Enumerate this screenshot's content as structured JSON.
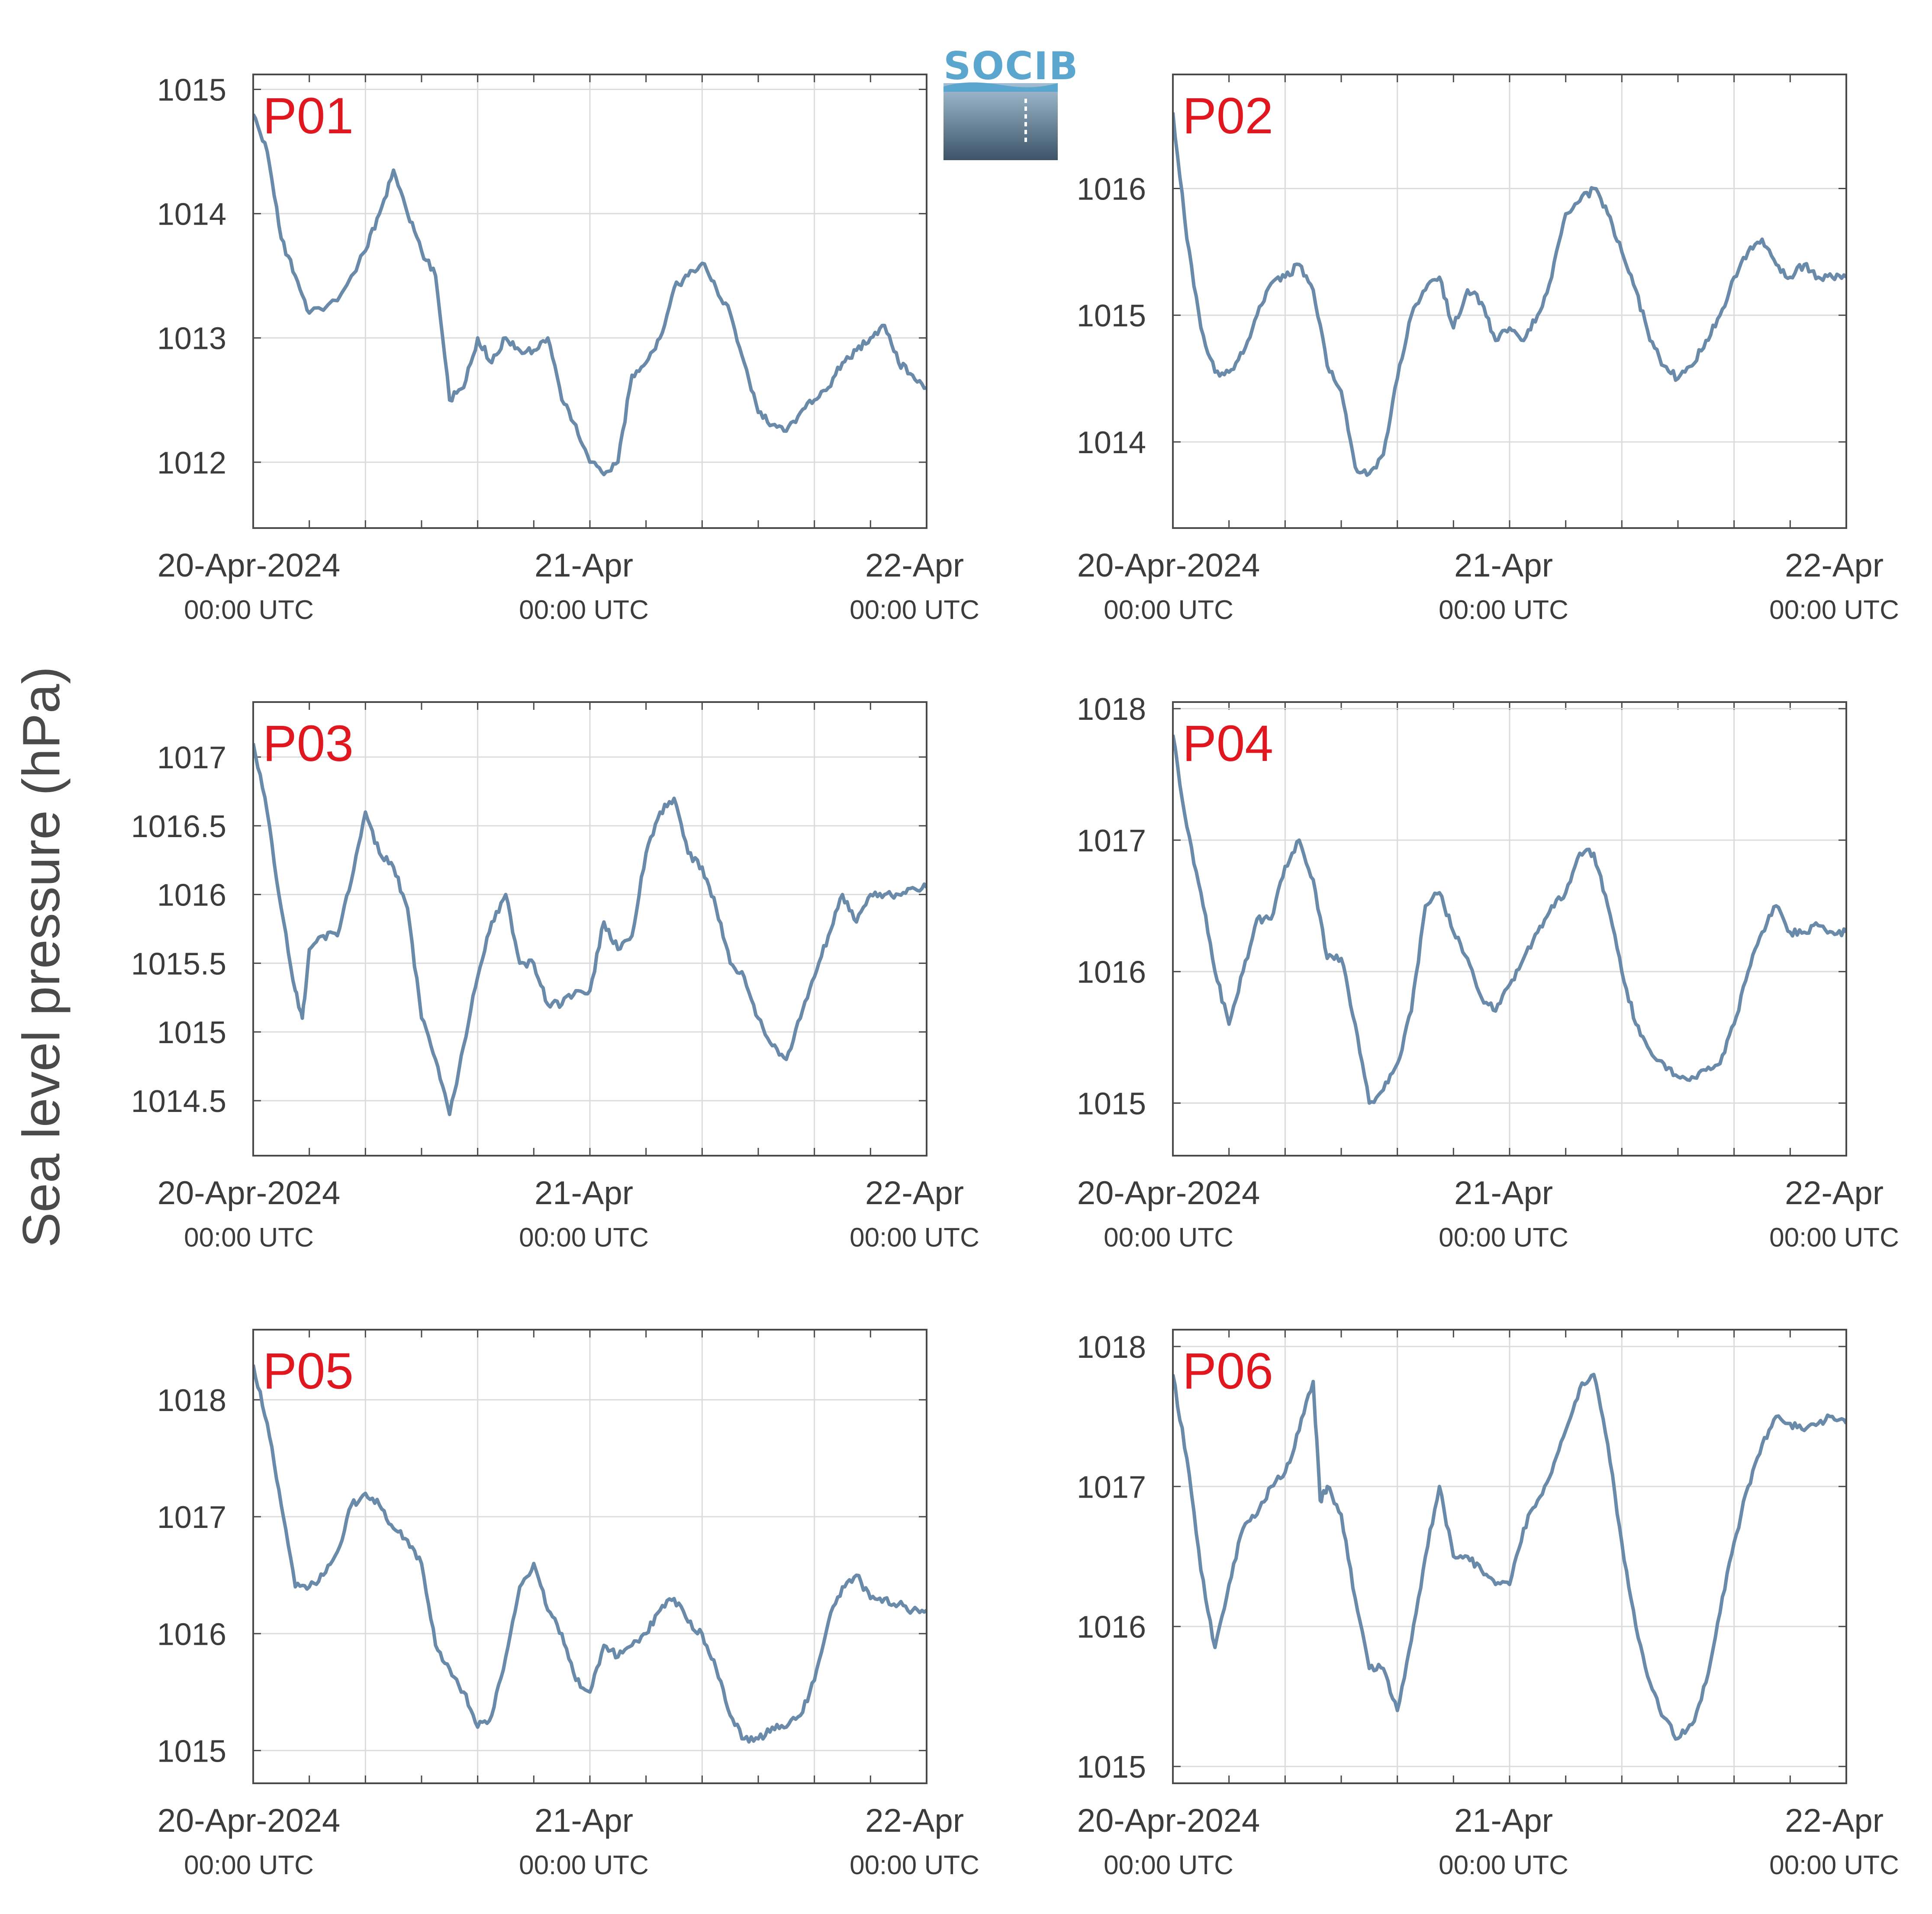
{
  "y_axis_label": "Sea level pressure (hPa)",
  "logo": {
    "text": "SOCIB"
  },
  "colors": {
    "line": "#6a8aaa",
    "station_label": "#e0171f",
    "grid": "#dcdcdc",
    "axis": "#4a4a4a",
    "text": "#3c3c3c"
  },
  "x_tick_labels": [
    {
      "date": "20-Apr-2024",
      "time": "00:00 UTC"
    },
    {
      "date": "21-Apr",
      "time": "00:00 UTC"
    },
    {
      "date": "22-Apr",
      "time": "00:00 UTC"
    }
  ],
  "chart_data": [
    {
      "type": "line",
      "title": "P01",
      "xlabel": "",
      "ylabel": "Sea level pressure (hPa)",
      "xlim": [
        "2024-04-20 00:00",
        "2024-04-22 00:00"
      ],
      "ylim": [
        1011.47,
        1015.12
      ],
      "yticks": [
        "1012",
        "1013",
        "1014",
        "1015"
      ],
      "grid": true,
      "series": [
        {
          "x_hours": [
            0,
            1,
            2,
            3,
            4,
            6,
            8,
            9,
            10,
            11,
            12,
            13,
            14,
            15,
            16,
            17,
            18,
            19,
            20,
            21,
            22,
            23,
            24,
            25,
            26,
            27,
            28,
            29,
            30,
            31,
            32,
            33,
            34,
            35,
            36,
            37,
            38,
            39,
            40,
            41,
            42,
            43,
            44,
            45,
            46,
            47,
            48
          ],
          "values": [
            1014.8,
            1014.5,
            1013.8,
            1013.5,
            1013.2,
            1013.3,
            1013.7,
            1014.0,
            1014.35,
            1014.0,
            1013.7,
            1013.5,
            1012.5,
            1012.6,
            1013.0,
            1012.8,
            1013.0,
            1012.9,
            1012.9,
            1013.0,
            1012.5,
            1012.3,
            1012.0,
            1011.9,
            1012.0,
            1012.7,
            1012.8,
            1013.0,
            1013.4,
            1013.5,
            1013.6,
            1013.4,
            1013.2,
            1012.8,
            1012.4,
            1012.3,
            1012.25,
            1012.4,
            1012.5,
            1012.6,
            1012.8,
            1012.9,
            1013.0,
            1013.1,
            1012.8,
            1012.7,
            1012.6
          ]
        }
      ]
    },
    {
      "type": "line",
      "title": "P02",
      "xlabel": "",
      "ylabel": "Sea level pressure (hPa)",
      "xlim": [
        "2024-04-20 00:00",
        "2024-04-22 00:00"
      ],
      "ylim": [
        1013.32,
        1016.9
      ],
      "yticks": [
        "1014",
        "1015",
        "1016"
      ],
      "grid": true,
      "series": [
        {
          "x_hours": [
            0,
            1,
            2,
            3,
            4,
            5,
            6,
            7,
            8,
            9,
            10,
            11,
            12,
            13,
            14,
            15,
            16,
            17,
            18,
            19,
            20,
            21,
            22,
            23,
            24,
            25,
            26,
            27,
            28,
            29,
            30,
            31,
            32,
            33,
            34,
            35,
            36,
            37,
            38,
            39,
            40,
            41,
            42,
            43,
            44,
            45,
            46,
            47,
            48
          ],
          "values": [
            1016.6,
            1015.6,
            1014.9,
            1014.55,
            1014.55,
            1014.7,
            1015.0,
            1015.25,
            1015.3,
            1015.4,
            1015.2,
            1014.6,
            1014.4,
            1013.8,
            1013.75,
            1013.9,
            1014.5,
            1015.0,
            1015.2,
            1015.3,
            1014.9,
            1015.2,
            1015.1,
            1014.8,
            1014.9,
            1014.8,
            1015.0,
            1015.3,
            1015.8,
            1015.9,
            1016.0,
            1015.8,
            1015.5,
            1015.2,
            1014.8,
            1014.6,
            1014.5,
            1014.6,
            1014.8,
            1015.0,
            1015.3,
            1015.5,
            1015.6,
            1015.4,
            1015.3,
            1015.4,
            1015.3,
            1015.3,
            1015.3
          ]
        }
      ]
    },
    {
      "type": "line",
      "title": "P03",
      "xlabel": "",
      "ylabel": "Sea level pressure (hPa)",
      "xlim": [
        "2024-04-20 00:00",
        "2024-04-22 00:00"
      ],
      "ylim": [
        1014.1,
        1017.4
      ],
      "yticks": [
        "1014.5",
        "1015",
        "1015.5",
        "1016",
        "1016.5",
        "1017"
      ],
      "grid": true,
      "series": [
        {
          "x_hours": [
            0,
            1,
            2,
            3,
            3.5,
            4,
            5,
            6,
            7,
            8,
            9,
            10,
            11,
            12,
            13,
            14,
            15,
            16,
            17,
            18,
            19,
            20,
            21,
            22,
            23,
            24,
            25,
            26,
            27,
            28,
            29,
            30,
            31,
            32,
            33,
            34,
            35,
            36,
            37,
            38,
            39,
            40,
            41,
            42,
            43,
            44,
            45,
            46,
            47,
            48
          ],
          "values": [
            1017.1,
            1016.6,
            1015.9,
            1015.3,
            1015.1,
            1015.6,
            1015.7,
            1015.7,
            1016.1,
            1016.6,
            1016.3,
            1016.2,
            1015.9,
            1015.1,
            1014.8,
            1014.4,
            1014.9,
            1015.4,
            1015.8,
            1016.0,
            1015.5,
            1015.5,
            1015.2,
            1015.2,
            1015.3,
            1015.3,
            1015.8,
            1015.6,
            1015.7,
            1016.3,
            1016.6,
            1016.7,
            1016.3,
            1016.2,
            1015.9,
            1015.5,
            1015.4,
            1015.1,
            1014.9,
            1014.8,
            1015.1,
            1015.4,
            1015.7,
            1016.0,
            1015.8,
            1016.0,
            1016.0,
            1016.0,
            1016.05,
            1016.05
          ]
        }
      ]
    },
    {
      "type": "line",
      "title": "P04",
      "xlabel": "",
      "ylabel": "Sea level pressure (hPa)",
      "xlim": [
        "2024-04-20 00:00",
        "2024-04-22 00:00"
      ],
      "ylim": [
        1014.6,
        1018.05
      ],
      "yticks": [
        "1015",
        "1016",
        "1017",
        "1018"
      ],
      "grid": true,
      "series": [
        {
          "x_hours": [
            0,
            1,
            2,
            3,
            4,
            5,
            6,
            7,
            8,
            9,
            10,
            11,
            12,
            13,
            14,
            15,
            16,
            17,
            18,
            19,
            20,
            21,
            22,
            23,
            24,
            25,
            26,
            27,
            28,
            29,
            30,
            31,
            32,
            33,
            34,
            35,
            36,
            37,
            38,
            39,
            40,
            41,
            42,
            43,
            44,
            45,
            46,
            47,
            48
          ],
          "values": [
            1017.8,
            1017.1,
            1016.6,
            1016.0,
            1015.6,
            1016.0,
            1016.4,
            1016.4,
            1016.8,
            1017.0,
            1016.7,
            1016.1,
            1016.1,
            1015.6,
            1015.0,
            1015.1,
            1015.3,
            1015.7,
            1016.5,
            1016.6,
            1016.3,
            1016.1,
            1015.8,
            1015.7,
            1015.9,
            1016.1,
            1016.3,
            1016.5,
            1016.6,
            1016.9,
            1016.9,
            1016.5,
            1016.0,
            1015.6,
            1015.4,
            1015.3,
            1015.2,
            1015.2,
            1015.25,
            1015.3,
            1015.6,
            1016.0,
            1016.3,
            1016.5,
            1016.3,
            1016.3,
            1016.35,
            1016.3,
            1016.3
          ]
        }
      ]
    },
    {
      "type": "line",
      "title": "P05",
      "xlabel": "",
      "ylabel": "Sea level pressure (hPa)",
      "xlim": [
        "2024-04-20 00:00",
        "2024-04-22 00:00"
      ],
      "ylim": [
        1014.72,
        1018.6
      ],
      "yticks": [
        "1015",
        "1016",
        "1017",
        "1018"
      ],
      "grid": true,
      "series": [
        {
          "x_hours": [
            0,
            1,
            2,
            3,
            4,
            5,
            6,
            7,
            8,
            9,
            10,
            11,
            12,
            13,
            14,
            15,
            16,
            17,
            18,
            19,
            20,
            21,
            22,
            23,
            24,
            25,
            26,
            27,
            28,
            29,
            30,
            31,
            32,
            33,
            34,
            35,
            36,
            37,
            38,
            39,
            40,
            41,
            42,
            43,
            44,
            45,
            46,
            47,
            48
          ],
          "values": [
            1018.3,
            1017.8,
            1017.1,
            1016.4,
            1016.4,
            1016.5,
            1016.7,
            1017.1,
            1017.2,
            1017.1,
            1016.9,
            1016.8,
            1016.6,
            1015.9,
            1015.7,
            1015.5,
            1015.2,
            1015.3,
            1015.8,
            1016.4,
            1016.6,
            1016.2,
            1016.0,
            1015.6,
            1015.5,
            1015.9,
            1015.8,
            1015.9,
            1016.0,
            1016.2,
            1016.3,
            1016.1,
            1016.0,
            1015.7,
            1015.3,
            1015.1,
            1015.1,
            1015.2,
            1015.2,
            1015.3,
            1015.6,
            1016.1,
            1016.4,
            1016.5,
            1016.3,
            1016.3,
            1016.25,
            1016.2,
            1016.2
          ]
        }
      ]
    },
    {
      "type": "line",
      "title": "P06",
      "xlabel": "",
      "ylabel": "Sea level pressure (hPa)",
      "xlim": [
        "2024-04-20 00:00",
        "2024-04-22 00:00"
      ],
      "ylim": [
        1014.88,
        1018.12
      ],
      "yticks": [
        "1015",
        "1016",
        "1017",
        "1018"
      ],
      "grid": true,
      "series": [
        {
          "x_hours": [
            0,
            1,
            2,
            3,
            4,
            5,
            6,
            7,
            8,
            9,
            10,
            10.5,
            11,
            12,
            13,
            14,
            15,
            16,
            17,
            18,
            19,
            20,
            21,
            22,
            23,
            24,
            25,
            26,
            27,
            28,
            29,
            30,
            31,
            32,
            33,
            34,
            35,
            36,
            37,
            38,
            39,
            40,
            41,
            42,
            43,
            44,
            45,
            46,
            47,
            48
          ],
          "values": [
            1017.8,
            1017.2,
            1016.4,
            1015.85,
            1016.3,
            1016.7,
            1016.8,
            1017.0,
            1017.1,
            1017.4,
            1017.75,
            1016.9,
            1017.0,
            1016.8,
            1016.2,
            1015.7,
            1015.7,
            1015.4,
            1015.9,
            1016.5,
            1017.0,
            1016.5,
            1016.5,
            1016.4,
            1016.3,
            1016.3,
            1016.7,
            1016.9,
            1017.1,
            1017.4,
            1017.7,
            1017.8,
            1017.3,
            1016.6,
            1016.0,
            1015.6,
            1015.35,
            1015.2,
            1015.3,
            1015.6,
            1016.1,
            1016.6,
            1017.0,
            1017.3,
            1017.5,
            1017.45,
            1017.4,
            1017.45,
            1017.5,
            1017.45
          ]
        }
      ]
    }
  ]
}
